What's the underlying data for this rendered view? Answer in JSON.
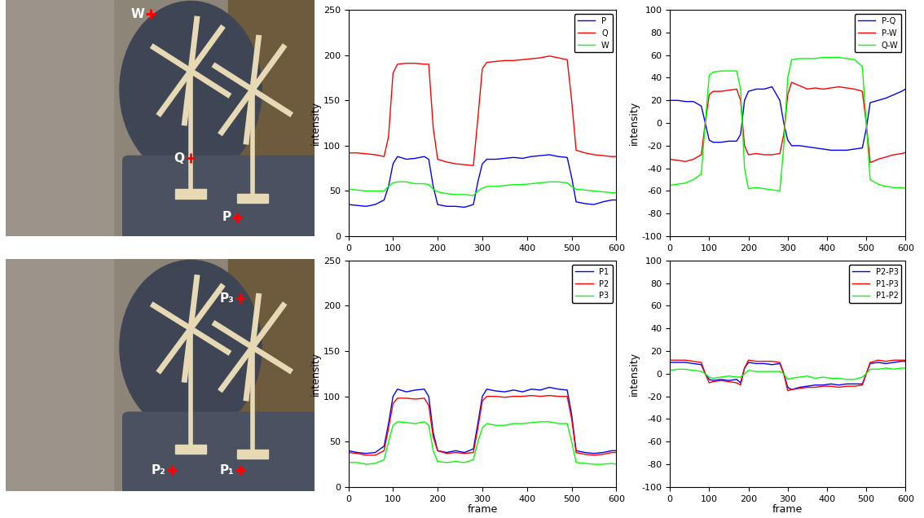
{
  "images": [
    {
      "points": [
        "W",
        "Q",
        "P"
      ]
    },
    {
      "points": [
        "P₃",
        "P₂",
        "P₁"
      ]
    }
  ],
  "chart_data": [
    {
      "type": "line",
      "x": [
        0,
        20,
        40,
        60,
        80,
        90,
        100,
        110,
        130,
        150,
        170,
        180,
        190,
        200,
        220,
        240,
        260,
        280,
        290,
        300,
        310,
        330,
        350,
        370,
        390,
        410,
        430,
        450,
        470,
        490,
        500,
        510,
        530,
        550,
        570,
        590,
        600
      ],
      "series": [
        {
          "name": "P",
          "color": "#0000ff",
          "values": [
            35,
            34,
            33,
            35,
            40,
            55,
            80,
            88,
            85,
            86,
            88,
            85,
            55,
            35,
            33,
            33,
            32,
            35,
            60,
            80,
            85,
            85,
            86,
            87,
            86,
            88,
            89,
            90,
            88,
            87,
            65,
            38,
            36,
            35,
            38,
            40,
            40
          ]
        },
        {
          "name": "Q",
          "color": "#ff0000",
          "values": [
            92,
            92,
            91,
            90,
            88,
            110,
            180,
            190,
            191,
            191,
            190,
            190,
            120,
            85,
            82,
            80,
            79,
            78,
            130,
            185,
            192,
            193,
            194,
            194,
            195,
            196,
            197,
            199,
            197,
            195,
            150,
            95,
            92,
            90,
            89,
            88,
            88
          ]
        },
        {
          "name": "W",
          "color": "#00ff00",
          "values": [
            52,
            51,
            50,
            50,
            50,
            55,
            59,
            60,
            60,
            58,
            58,
            57,
            52,
            49,
            47,
            46,
            46,
            45,
            50,
            53,
            55,
            55,
            56,
            57,
            57,
            58,
            59,
            60,
            60,
            59,
            55,
            52,
            51,
            50,
            49,
            48,
            48
          ]
        }
      ],
      "xlim": [
        0,
        600
      ],
      "xticks": [
        0,
        100,
        200,
        300,
        400,
        500,
        600
      ],
      "ylim": [
        0,
        250
      ],
      "yticks": [
        0,
        50,
        100,
        150,
        200,
        250
      ],
      "ylabel": "intensity",
      "legend": "upper right"
    },
    {
      "type": "line",
      "x": [
        0,
        20,
        40,
        60,
        80,
        90,
        100,
        110,
        130,
        150,
        170,
        180,
        190,
        200,
        220,
        240,
        260,
        280,
        290,
        300,
        310,
        330,
        350,
        370,
        390,
        410,
        430,
        450,
        470,
        490,
        500,
        510,
        530,
        550,
        570,
        590,
        600
      ],
      "series": [
        {
          "name": "P-Q",
          "color": "#0000ff",
          "values": [
            20,
            20,
            19,
            19,
            15,
            0,
            -15,
            -17,
            -17,
            -16,
            -16,
            -10,
            20,
            28,
            30,
            30,
            32,
            20,
            0,
            -15,
            -20,
            -20,
            -21,
            -22,
            -23,
            -24,
            -24,
            -24,
            -23,
            -22,
            -5,
            18,
            20,
            22,
            25,
            28,
            30
          ]
        },
        {
          "name": "P-W",
          "color": "#ff0000",
          "values": [
            -32,
            -33,
            -34,
            -32,
            -28,
            0,
            25,
            28,
            28,
            29,
            30,
            20,
            -20,
            -28,
            -27,
            -28,
            -28,
            -27,
            -10,
            25,
            36,
            33,
            30,
            31,
            30,
            31,
            32,
            31,
            30,
            28,
            0,
            -35,
            -32,
            -30,
            -28,
            -27,
            -26
          ]
        },
        {
          "name": "Q-W",
          "color": "#00ff00",
          "values": [
            -55,
            -54,
            -53,
            -50,
            -45,
            0,
            42,
            45,
            46,
            46,
            46,
            30,
            -40,
            -58,
            -57,
            -58,
            -59,
            -60,
            -20,
            40,
            56,
            57,
            57,
            57,
            58,
            58,
            58,
            57,
            56,
            50,
            0,
            -50,
            -54,
            -56,
            -57,
            -57,
            -58
          ]
        }
      ],
      "xlim": [
        0,
        600
      ],
      "xticks": [
        0,
        100,
        200,
        300,
        400,
        500,
        600
      ],
      "ylim": [
        -100,
        100
      ],
      "yticks": [
        -100,
        -80,
        -60,
        -40,
        -20,
        0,
        20,
        40,
        60,
        80,
        100
      ],
      "ylabel": "intensity",
      "legend": "upper right"
    },
    {
      "type": "line",
      "x": [
        0,
        20,
        40,
        60,
        80,
        90,
        100,
        110,
        130,
        150,
        170,
        180,
        190,
        200,
        220,
        240,
        260,
        280,
        290,
        300,
        310,
        330,
        350,
        370,
        390,
        410,
        430,
        450,
        470,
        490,
        500,
        510,
        530,
        550,
        570,
        590,
        600
      ],
      "series": [
        {
          "name": "P1",
          "color": "#0000ff",
          "values": [
            40,
            38,
            37,
            38,
            45,
            70,
            100,
            108,
            105,
            107,
            108,
            100,
            60,
            40,
            38,
            40,
            38,
            42,
            70,
            100,
            108,
            106,
            105,
            107,
            105,
            108,
            107,
            110,
            108,
            107,
            80,
            40,
            38,
            37,
            38,
            40,
            40
          ]
        },
        {
          "name": "P2",
          "color": "#ff0000",
          "values": [
            38,
            37,
            35,
            35,
            40,
            65,
            92,
            98,
            98,
            97,
            98,
            90,
            55,
            40,
            37,
            38,
            37,
            38,
            65,
            95,
            100,
            100,
            99,
            100,
            100,
            101,
            100,
            101,
            100,
            100,
            75,
            38,
            36,
            35,
            36,
            38,
            38
          ]
        },
        {
          "name": "P3",
          "color": "#00ff00",
          "values": [
            27,
            27,
            25,
            26,
            30,
            50,
            68,
            72,
            71,
            70,
            72,
            68,
            40,
            28,
            27,
            28,
            27,
            30,
            50,
            65,
            70,
            68,
            68,
            70,
            70,
            71,
            72,
            72,
            70,
            70,
            50,
            27,
            26,
            25,
            25,
            26,
            25
          ]
        }
      ],
      "xlim": [
        0,
        600
      ],
      "xticks": [
        0,
        100,
        200,
        300,
        400,
        500,
        600
      ],
      "ylim": [
        0,
        250
      ],
      "yticks": [
        0,
        50,
        100,
        150,
        200,
        250
      ],
      "xlabel": "frame",
      "ylabel": "intensity",
      "legend": "upper right"
    },
    {
      "type": "line",
      "x": [
        0,
        20,
        40,
        60,
        80,
        90,
        100,
        110,
        130,
        150,
        170,
        180,
        190,
        200,
        220,
        240,
        260,
        280,
        290,
        300,
        310,
        330,
        350,
        370,
        390,
        410,
        430,
        450,
        470,
        490,
        500,
        510,
        530,
        550,
        570,
        590,
        600
      ],
      "series": [
        {
          "name": "P2-P3",
          "color": "#0000ff",
          "values": [
            10,
            10,
            10,
            9,
            8,
            0,
            -5,
            -6,
            -5,
            -6,
            -5,
            -8,
            5,
            10,
            9,
            9,
            8,
            9,
            0,
            -12,
            -14,
            -12,
            -11,
            -10,
            -10,
            -9,
            -10,
            -9,
            -9,
            -9,
            0,
            9,
            10,
            9,
            10,
            11,
            11
          ]
        },
        {
          "name": "P1-P3",
          "color": "#ff0000",
          "values": [
            12,
            12,
            12,
            11,
            10,
            0,
            -8,
            -7,
            -6,
            -7,
            -8,
            -10,
            5,
            12,
            11,
            11,
            11,
            10,
            0,
            -15,
            -14,
            -13,
            -12,
            -12,
            -11,
            -11,
            -12,
            -11,
            -11,
            -10,
            0,
            10,
            12,
            11,
            12,
            12,
            12
          ]
        },
        {
          "name": "P1-P2",
          "color": "#00ff00",
          "values": [
            3,
            4,
            4,
            3,
            2,
            0,
            -3,
            -4,
            -3,
            -2,
            -3,
            -3,
            0,
            3,
            2,
            2,
            2,
            2,
            0,
            -5,
            -4,
            -3,
            -2,
            -4,
            -3,
            -4,
            -4,
            -5,
            -5,
            -3,
            0,
            4,
            4,
            5,
            4,
            5,
            5
          ]
        }
      ],
      "xlim": [
        0,
        600
      ],
      "xticks": [
        0,
        100,
        200,
        300,
        400,
        500,
        600
      ],
      "ylim": [
        -100,
        100
      ],
      "yticks": [
        -100,
        -80,
        -60,
        -40,
        -20,
        0,
        20,
        40,
        60,
        80,
        100
      ],
      "xlabel": "frame",
      "ylabel": "intensity",
      "legend": "upper right"
    }
  ]
}
